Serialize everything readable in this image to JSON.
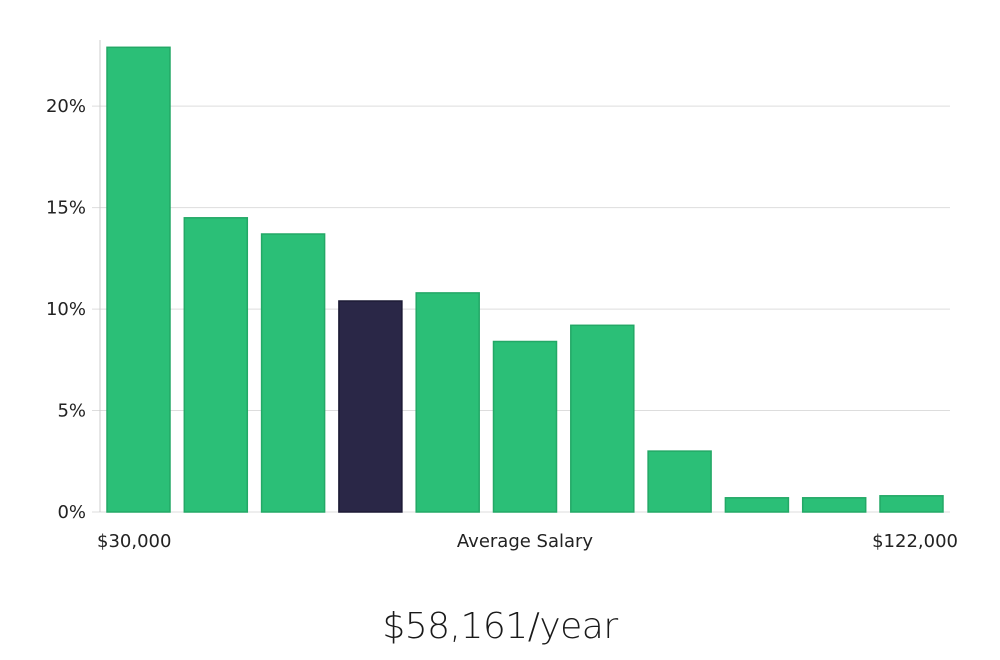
{
  "chart_data": {
    "type": "bar",
    "values": [
      22.9,
      14.5,
      13.7,
      10.4,
      10.8,
      8.4,
      9.2,
      3.0,
      0.7,
      0.7,
      0.8
    ],
    "highlight_index": 3,
    "ylim": [
      0,
      24
    ],
    "yticks": [
      0,
      5,
      10,
      15,
      20
    ],
    "ytick_labels": [
      "0%",
      "5%",
      "10%",
      "15%",
      "20%"
    ],
    "xlabel_left": "$30,000",
    "xlabel_center": "Average Salary",
    "xlabel_right": "$122,000",
    "grid": true,
    "colors": {
      "bar": "#2bbf77",
      "bar_edge": "#23a866",
      "highlight": "#2a2747",
      "highlight_edge": "#1c1a35"
    }
  },
  "summary": {
    "salary_text": "$58,161/year"
  }
}
